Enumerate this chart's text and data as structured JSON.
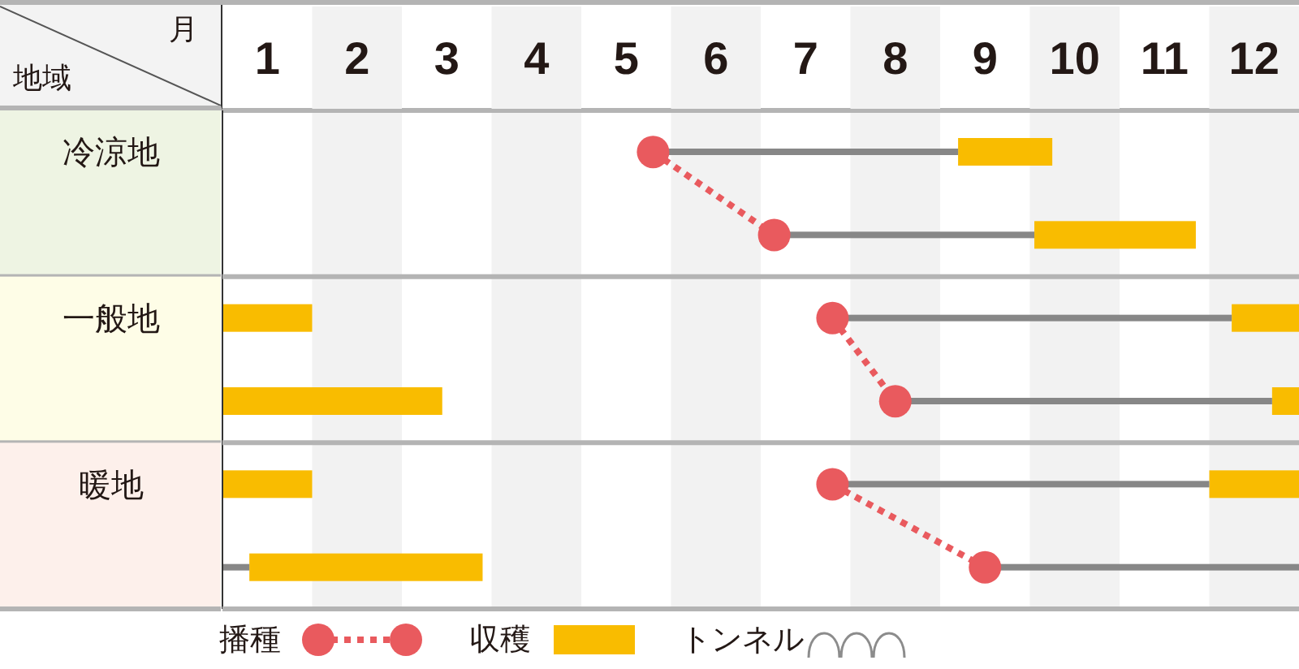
{
  "chart_data": {
    "type": "bar",
    "orientation": "horizontal",
    "xlabel": "月",
    "ylabel": "地域",
    "categories": [
      "冷涼地",
      null,
      "一般地",
      null,
      "暖地",
      null
    ],
    "series": [
      {
        "name": "播種",
        "type": "line",
        "color": "#e95a5e",
        "values": [
          5.3,
          6.65,
          null,
          null,
          null,
          null
        ]
      },
      {
        "type": "line",
        "color": "#e95a5e",
        "values": [
          null,
          null,
          7.3,
          8.0,
          null,
          null
        ]
      },
      {
        "type": "line",
        "color": "#e95a5e",
        "values": [
          null,
          null,
          null,
          null,
          7.3,
          9.0
        ]
      },
      {
        "name": "収穫",
        "color": "#f9bc00",
        "base": [
          8.7,
          9.55,
          11.75,
          12.2,
          11.5,
          null
        ],
        "values": [
          1.05,
          1.8,
          0.75,
          0.3,
          1.0,
          null
        ]
      },
      {
        "color": "#f9bc00",
        "base": [
          null,
          null,
          0.5,
          0.5,
          0.5,
          0.8
        ],
        "values": [
          null,
          null,
          1.0,
          2.45,
          1.0,
          2.6
        ]
      },
      {
        "color": "#878787",
        "base": [
          5.3,
          6.65,
          7.3,
          8.0,
          7.3,
          9.0
        ],
        "values": [
          3.4,
          2.9,
          4.45,
          4.2,
          4.2,
          3.5
        ]
      },
      {
        "color": "#878787",
        "base": [
          null,
          null,
          null,
          null,
          null,
          0.5
        ],
        "values": [
          null,
          null,
          null,
          null,
          null,
          0.3
        ]
      }
    ],
    "xlim": [
      0.5,
      12.5
    ],
    "xticks": [
      1,
      2,
      3,
      4,
      5,
      6,
      7,
      8,
      9,
      10,
      11,
      12
    ],
    "bands": [
      {
        "axis": "x",
        "from": 1.5,
        "to": 2.5,
        "color": "#f2f2f2"
      },
      {
        "axis": "x",
        "from": 3.5,
        "to": 4.5,
        "color": "#f2f2f2"
      },
      {
        "axis": "x",
        "from": 5.5,
        "to": 6.5,
        "color": "#f2f2f2"
      },
      {
        "axis": "x",
        "from": 7.5,
        "to": 8.5,
        "color": "#f2f2f2"
      },
      {
        "axis": "x",
        "from": 9.5,
        "to": 10.5,
        "color": "#f2f2f2"
      },
      {
        "axis": "x",
        "from": 11.5,
        "to": 12.5,
        "color": "#f2f2f2"
      }
    ],
    "marker": "circle",
    "line_style": "dotted",
    "legend": "bottom",
    "annotations": [
      "トンネル"
    ]
  }
}
